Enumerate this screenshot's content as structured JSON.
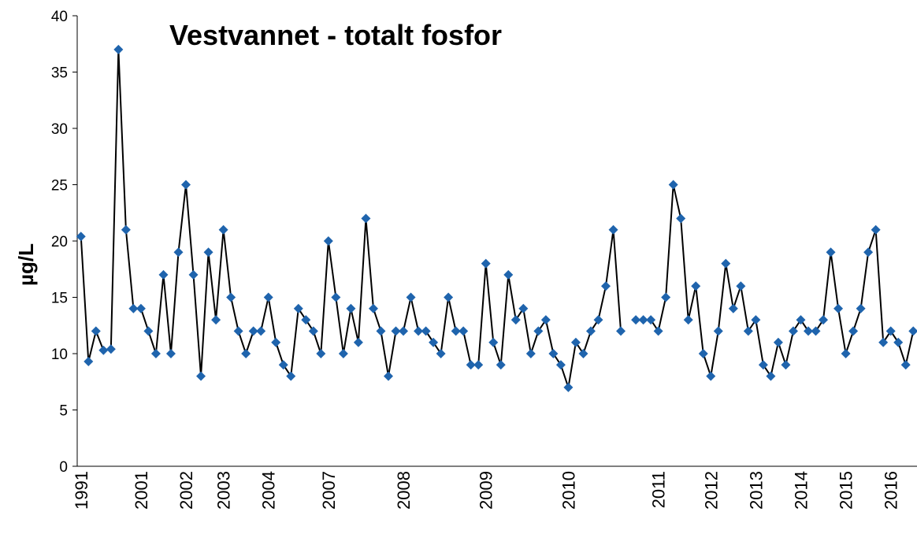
{
  "chart_data": {
    "type": "line",
    "title": "Vestvannet - totalt fosfor",
    "y_label": "µg/L",
    "categories": [
      "1991",
      null,
      null,
      null,
      null,
      null,
      null,
      null,
      "2001",
      null,
      null,
      null,
      null,
      null,
      "2002",
      null,
      null,
      null,
      null,
      "2003",
      null,
      null,
      null,
      null,
      null,
      "2004",
      null,
      null,
      null,
      null,
      null,
      null,
      null,
      "2007",
      null,
      null,
      null,
      null,
      null,
      null,
      null,
      null,
      null,
      "2008",
      null,
      null,
      null,
      null,
      null,
      null,
      null,
      null,
      null,
      null,
      "2009",
      null,
      null,
      null,
      null,
      null,
      null,
      null,
      null,
      null,
      null,
      "2010",
      null,
      null,
      null,
      null,
      null,
      null,
      null,
      null,
      null,
      null,
      null,
      "2011",
      null,
      null,
      null,
      null,
      null,
      null,
      "2012",
      null,
      null,
      null,
      null,
      null,
      "2013",
      null,
      null,
      null,
      null,
      null,
      "2014",
      null,
      null,
      null,
      null,
      null,
      "2015",
      null,
      null,
      null,
      null,
      null,
      "2016",
      null,
      null,
      null
    ],
    "series": [
      {
        "name": "totalt fosfor",
        "color": "#1f64ad",
        "line_color": "#000000",
        "values": [
          20.4,
          9.3,
          12,
          10.3,
          10.4,
          37,
          21,
          14,
          14,
          12,
          10,
          17,
          10,
          19,
          25,
          17,
          8,
          19,
          13,
          21,
          15,
          12,
          10,
          12,
          12,
          15,
          11,
          9,
          8,
          14,
          13,
          12,
          10,
          20,
          15,
          10,
          14,
          11,
          22,
          14,
          12,
          8,
          12,
          12,
          15,
          12,
          12,
          11,
          10,
          15,
          12,
          12,
          9,
          9,
          18,
          11,
          9,
          17,
          13,
          14,
          10,
          12,
          13,
          10,
          9,
          7,
          11,
          10,
          12,
          13,
          16,
          21,
          12,
          null,
          13,
          13,
          13,
          12,
          15,
          25,
          22,
          13,
          16,
          10,
          8,
          12,
          18,
          14,
          16,
          12,
          13,
          9,
          8,
          11,
          9,
          12,
          13,
          12,
          12,
          13,
          19,
          14,
          10,
          12,
          14,
          19,
          21,
          11,
          12,
          11,
          9,
          12
        ]
      }
    ],
    "ylim": [
      0,
      40
    ],
    "yticks": [
      0,
      5,
      10,
      15,
      20,
      25,
      30,
      35,
      40
    ],
    "grid": false,
    "legend": false
  }
}
